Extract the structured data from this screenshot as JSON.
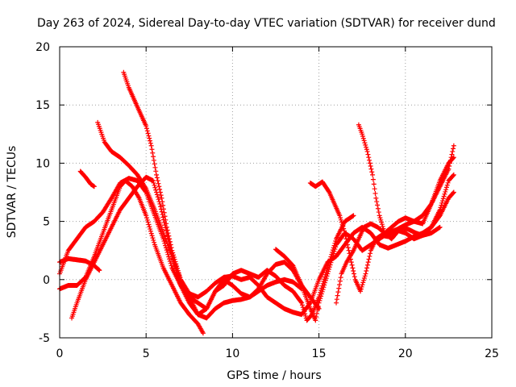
{
  "chart_data": {
    "type": "scatter",
    "title": "Day 263 of 2024, Sidereal Day-to-day VTEC variation (SDTVAR) for receiver dund",
    "xlabel": "GPS time / hours",
    "ylabel": "SDTVAR / TECUs",
    "xlim": [
      0,
      25
    ],
    "ylim": [
      -5,
      20
    ],
    "xticks": [
      0,
      5,
      10,
      15,
      20,
      25
    ],
    "yticks": [
      -5,
      0,
      5,
      10,
      15,
      20
    ],
    "grid": true,
    "marker": "+",
    "marker_color": "#ff0000",
    "series": [
      {
        "points": [
          [
            0,
            1.5
          ],
          [
            0.5,
            1.8
          ],
          [
            1.0,
            1.7
          ],
          [
            1.5,
            1.6
          ],
          [
            2.0,
            1.2
          ],
          [
            2.3,
            0.8
          ]
        ]
      },
      {
        "points": [
          [
            0,
            -0.8
          ],
          [
            0.5,
            -0.5
          ],
          [
            1.0,
            -0.5
          ],
          [
            1.5,
            0.2
          ],
          [
            2.0,
            2.0
          ],
          [
            2.5,
            4.0
          ],
          [
            3.0,
            6.0
          ],
          [
            3.5,
            8.0
          ],
          [
            3.8,
            8.5
          ],
          [
            4.2,
            8.0
          ],
          [
            4.6,
            7.0
          ],
          [
            5.0,
            5.5
          ],
          [
            5.5,
            3.0
          ],
          [
            6.0,
            1.0
          ],
          [
            6.5,
            -0.5
          ],
          [
            7.0,
            -2.0
          ],
          [
            7.5,
            -3.0
          ],
          [
            8.0,
            -3.8
          ],
          [
            8.3,
            -4.6
          ]
        ]
      },
      {
        "points": [
          [
            0,
            0.5
          ],
          [
            0.5,
            2.5
          ],
          [
            1.0,
            3.5
          ],
          [
            1.5,
            4.5
          ],
          [
            2.0,
            5.0
          ],
          [
            2.5,
            5.8
          ],
          [
            3.0,
            7.0
          ],
          [
            3.5,
            8.3
          ],
          [
            4.0,
            8.7
          ],
          [
            4.5,
            8.5
          ],
          [
            5.0,
            7.5
          ],
          [
            5.5,
            5.5
          ],
          [
            6.0,
            3.5
          ],
          [
            6.5,
            1.0
          ],
          [
            7.0,
            -0.5
          ],
          [
            7.5,
            -2.0
          ],
          [
            8.0,
            -3.0
          ],
          [
            8.5,
            -3.3
          ],
          [
            9.0,
            -2.5
          ],
          [
            9.5,
            -2.0
          ],
          [
            10.0,
            -1.8
          ],
          [
            10.5,
            -1.7
          ],
          [
            11.0,
            -1.5
          ],
          [
            11.5,
            -1.0
          ],
          [
            12.0,
            -0.5
          ],
          [
            12.5,
            -0.2
          ],
          [
            13.0,
            0.0
          ],
          [
            13.5,
            -0.2
          ],
          [
            14.0,
            -0.8
          ]
        ]
      },
      {
        "points": [
          [
            0.7,
            -3.3
          ],
          [
            1.0,
            -2.0
          ],
          [
            1.5,
            0.0
          ],
          [
            2.0,
            1.5
          ],
          [
            2.5,
            3.0
          ],
          [
            3.0,
            4.5
          ],
          [
            3.5,
            6.0
          ],
          [
            4.0,
            7.0
          ],
          [
            4.5,
            8.0
          ],
          [
            5.0,
            8.8
          ],
          [
            5.4,
            8.5
          ],
          [
            5.8,
            6.5
          ],
          [
            6.2,
            4.0
          ],
          [
            6.6,
            1.5
          ],
          [
            7.0,
            -0.5
          ],
          [
            7.5,
            -1.5
          ],
          [
            8.0,
            -2.0
          ],
          [
            8.5,
            -2.5
          ],
          [
            9.0,
            -1.0
          ],
          [
            9.5,
            -0.5
          ],
          [
            10.0,
            0.5
          ],
          [
            10.5,
            0.8
          ],
          [
            11.0,
            0.5
          ],
          [
            11.5,
            0.2
          ],
          [
            12.0,
            0.8
          ],
          [
            12.5,
            0.3
          ],
          [
            13.0,
            -0.5
          ],
          [
            13.5,
            -1.0
          ],
          [
            14.0,
            -2.0
          ],
          [
            14.3,
            -3.5
          ],
          [
            14.6,
            -3.0
          ],
          [
            15.0,
            -1.5
          ],
          [
            15.5,
            1.0
          ],
          [
            16.0,
            3.5
          ],
          [
            16.5,
            5.0
          ],
          [
            17.0,
            5.5
          ]
        ]
      },
      {
        "points": [
          [
            1.2,
            9.3
          ],
          [
            1.5,
            8.8
          ],
          [
            1.8,
            8.2
          ],
          [
            2.0,
            8.0
          ]
        ]
      },
      {
        "points": [
          [
            2.2,
            13.5
          ],
          [
            2.6,
            11.8
          ],
          [
            3.0,
            11.0
          ],
          [
            3.5,
            10.5
          ],
          [
            4.0,
            9.8
          ],
          [
            4.5,
            9.0
          ],
          [
            5.0,
            7.8
          ],
          [
            5.5,
            6.0
          ],
          [
            6.0,
            4.0
          ],
          [
            6.5,
            2.0
          ],
          [
            7.0,
            0.0
          ],
          [
            7.5,
            -1.2
          ],
          [
            8.0,
            -1.5
          ],
          [
            8.5,
            -1.0
          ],
          [
            9.0,
            -0.3
          ],
          [
            9.5,
            0.2
          ],
          [
            10.0,
            0.3
          ],
          [
            10.5,
            0.0
          ],
          [
            11.0,
            0.2
          ],
          [
            11.5,
            -0.5
          ],
          [
            12.0,
            -1.5
          ],
          [
            12.5,
            -2.0
          ],
          [
            13.0,
            -2.5
          ],
          [
            13.5,
            -2.8
          ],
          [
            14.0,
            -3.0
          ],
          [
            14.5,
            -2.0
          ],
          [
            15.0,
            0.0
          ],
          [
            15.5,
            1.5
          ],
          [
            16.0,
            2.0
          ],
          [
            16.5,
            3.0
          ],
          [
            17.0,
            4.0
          ],
          [
            17.5,
            4.5
          ],
          [
            18.0,
            4.0
          ],
          [
            18.5,
            3.0
          ],
          [
            19.0,
            2.7
          ],
          [
            19.5,
            3.0
          ],
          [
            20.0,
            3.3
          ],
          [
            20.5,
            3.7
          ],
          [
            21.0,
            4.0
          ],
          [
            21.5,
            4.5
          ],
          [
            22.0,
            5.5
          ],
          [
            22.5,
            7.0
          ],
          [
            22.8,
            7.5
          ]
        ]
      },
      {
        "points": [
          [
            3.7,
            17.8
          ],
          [
            4.0,
            16.5
          ],
          [
            4.3,
            15.5
          ],
          [
            4.6,
            14.5
          ],
          [
            5.0,
            13.2
          ],
          [
            5.3,
            11.5
          ],
          [
            5.6,
            9.0
          ],
          [
            5.9,
            7.0
          ],
          [
            6.2,
            4.5
          ],
          [
            6.5,
            2.5
          ],
          [
            7.0,
            0.0
          ],
          [
            7.5,
            -1.5
          ],
          [
            8.0,
            -3.0
          ],
          [
            8.5,
            -2.5
          ],
          [
            9.0,
            -1.0
          ],
          [
            9.5,
            0.0
          ],
          [
            10.0,
            -0.5
          ],
          [
            10.5,
            -1.2
          ],
          [
            11.0,
            -1.5
          ],
          [
            11.5,
            -0.8
          ],
          [
            12.0,
            0.5
          ],
          [
            12.5,
            1.3
          ],
          [
            13.0,
            1.5
          ],
          [
            13.5,
            0.8
          ],
          [
            14.0,
            -0.5
          ],
          [
            14.5,
            -1.5
          ],
          [
            15.0,
            -2.5
          ]
        ]
      },
      {
        "points": [
          [
            12.5,
            2.6
          ],
          [
            13.0,
            2.0
          ],
          [
            13.5,
            1.2
          ],
          [
            14.0,
            -0.5
          ],
          [
            14.5,
            -2.5
          ],
          [
            14.8,
            -3.5
          ],
          [
            15.0,
            -2.0
          ],
          [
            15.5,
            0.5
          ],
          [
            16.0,
            3.0
          ],
          [
            16.5,
            4.0
          ],
          [
            17.0,
            3.5
          ],
          [
            17.5,
            2.5
          ],
          [
            18.0,
            3.0
          ],
          [
            18.5,
            3.5
          ],
          [
            19.0,
            4.0
          ],
          [
            19.5,
            4.3
          ],
          [
            20.0,
            4.7
          ],
          [
            20.5,
            5.0
          ],
          [
            21.0,
            5.5
          ],
          [
            21.5,
            6.5
          ],
          [
            22.0,
            8.0
          ],
          [
            22.5,
            9.5
          ],
          [
            22.8,
            11.5
          ]
        ]
      },
      {
        "points": [
          [
            14.5,
            8.3
          ],
          [
            14.8,
            8.0
          ],
          [
            15.2,
            8.4
          ],
          [
            15.6,
            7.5
          ],
          [
            15.9,
            6.5
          ],
          [
            16.2,
            5.5
          ],
          [
            16.5,
            4.0
          ],
          [
            16.8,
            2.0
          ],
          [
            17.1,
            0.0
          ],
          [
            17.4,
            -1.0
          ],
          [
            17.7,
            0.5
          ],
          [
            18.0,
            2.5
          ],
          [
            18.3,
            3.5
          ],
          [
            18.6,
            3.8
          ],
          [
            19.0,
            3.7
          ],
          [
            19.4,
            4.2
          ],
          [
            19.8,
            4.5
          ],
          [
            20.2,
            4.3
          ],
          [
            20.6,
            4.0
          ],
          [
            21.0,
            3.8
          ],
          [
            21.5,
            4.0
          ],
          [
            22.0,
            4.5
          ]
        ]
      },
      {
        "points": [
          [
            16.0,
            -2.0
          ],
          [
            16.3,
            0.5
          ],
          [
            16.6,
            1.5
          ],
          [
            17.0,
            2.5
          ],
          [
            17.3,
            3.5
          ],
          [
            17.6,
            4.5
          ],
          [
            18.0,
            4.8
          ],
          [
            18.4,
            4.5
          ],
          [
            18.8,
            4.0
          ],
          [
            19.2,
            4.5
          ],
          [
            19.6,
            5.0
          ],
          [
            20.0,
            5.3
          ],
          [
            20.5,
            5.0
          ],
          [
            21.0,
            4.8
          ],
          [
            21.5,
            6.5
          ],
          [
            22.0,
            8.5
          ],
          [
            22.5,
            10.0
          ],
          [
            22.8,
            10.5
          ]
        ]
      },
      {
        "points": [
          [
            17.3,
            13.3
          ],
          [
            17.5,
            12.5
          ],
          [
            17.8,
            11.0
          ],
          [
            18.1,
            9.0
          ],
          [
            18.3,
            7.0
          ],
          [
            18.5,
            5.5
          ],
          [
            18.8,
            4.0
          ],
          [
            19.2,
            3.5
          ],
          [
            19.6,
            4.2
          ],
          [
            20.0,
            4.0
          ],
          [
            20.5,
            3.5
          ],
          [
            21.0,
            3.8
          ],
          [
            21.5,
            4.5
          ],
          [
            22.0,
            6.0
          ],
          [
            22.5,
            8.5
          ],
          [
            22.8,
            9.0
          ]
        ]
      }
    ]
  }
}
